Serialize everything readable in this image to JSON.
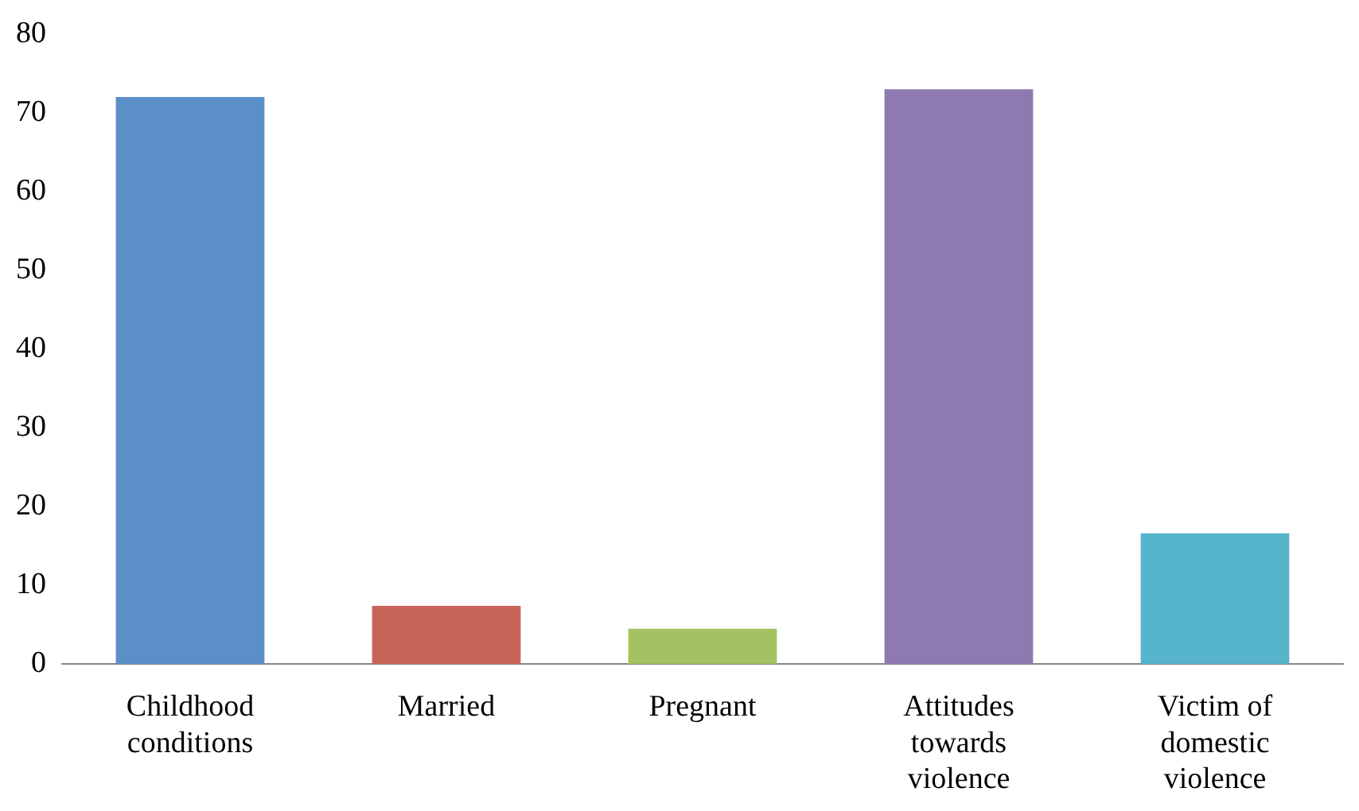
{
  "chart_data": {
    "type": "bar",
    "categories": [
      "Childhood conditions",
      "Married",
      "Pregnant",
      "Attitudes towards violence",
      "Victim of domestic violence"
    ],
    "values": [
      72,
      7.4,
      4.5,
      73,
      16.6
    ],
    "colors": [
      "#5b8fc7",
      "#c9645a",
      "#a5c262",
      "#8e7ab1",
      "#56b4cb"
    ],
    "ylim": [
      0,
      80
    ],
    "yticks": [
      0,
      10,
      20,
      30,
      40,
      50,
      60,
      70,
      80
    ],
    "grid": false,
    "legend": false
  }
}
